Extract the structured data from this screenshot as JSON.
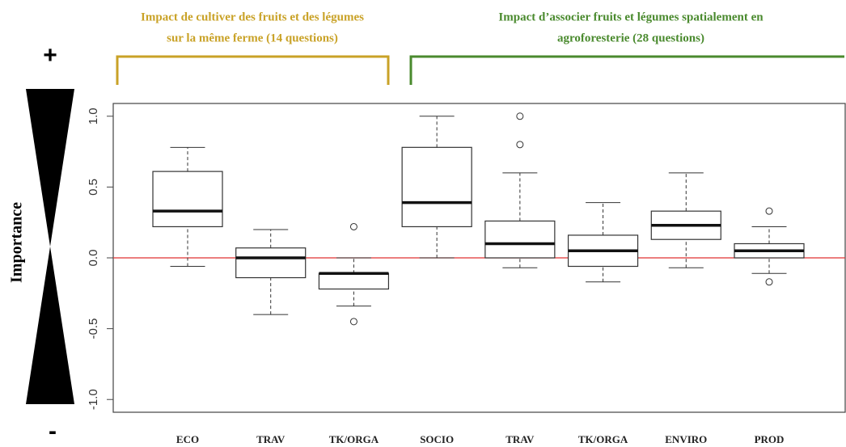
{
  "chart_data": {
    "type": "boxplot",
    "ylabel": "Importance",
    "plus_label": "+",
    "minus_label": "-",
    "groups": [
      {
        "title": [
          "Impact de cultiver des fruits et des légumes",
          "sur la même ferme (14 questions)"
        ],
        "color": "#c9a227"
      },
      {
        "title": [
          "Impact d’associer fruits et légumes spatialement en",
          "agroforesterie (28 questions)"
        ],
        "color": "#4a8a2e"
      }
    ],
    "categories": [
      "ECO",
      "TRAV",
      "TK/ORGA",
      "SOCIO",
      "TRAV",
      "TK/ORGA",
      "ENVIRO",
      "PROD"
    ],
    "boxes": [
      {
        "min": -0.06,
        "q1": 0.22,
        "median": 0.33,
        "q3": 0.61,
        "max": 0.78,
        "outliers": []
      },
      {
        "min": -0.4,
        "q1": -0.14,
        "median": 0.0,
        "q3": 0.07,
        "max": 0.2,
        "outliers": []
      },
      {
        "min": -0.34,
        "q1": -0.22,
        "median": -0.11,
        "q3": -0.11,
        "max": 0.0,
        "outliers": [
          0.22,
          -0.45
        ]
      },
      {
        "min": 0.0,
        "q1": 0.22,
        "median": 0.39,
        "q3": 0.78,
        "max": 1.0,
        "outliers": []
      },
      {
        "min": -0.07,
        "q1": 0.0,
        "median": 0.1,
        "q3": 0.26,
        "max": 0.6,
        "outliers": [
          1.0,
          0.8
        ]
      },
      {
        "min": -0.17,
        "q1": -0.06,
        "median": 0.05,
        "q3": 0.16,
        "max": 0.39,
        "outliers": []
      },
      {
        "min": -0.07,
        "q1": 0.13,
        "median": 0.23,
        "q3": 0.33,
        "max": 0.6,
        "outliers": []
      },
      {
        "min": -0.11,
        "q1": 0.0,
        "median": 0.05,
        "q3": 0.1,
        "max": 0.22,
        "outliers": [
          0.33,
          -0.17
        ]
      }
    ],
    "ylim": [
      -1.09,
      1.09
    ],
    "yticks": [
      {
        "value": 1,
        "label": "1.0"
      },
      0.5,
      {
        "value": 0,
        "label": "0.0"
      },
      -0.5,
      {
        "value": -1,
        "label": "-1.0"
      }
    ],
    "reference_line": 0,
    "reference_color": "#e03030"
  }
}
